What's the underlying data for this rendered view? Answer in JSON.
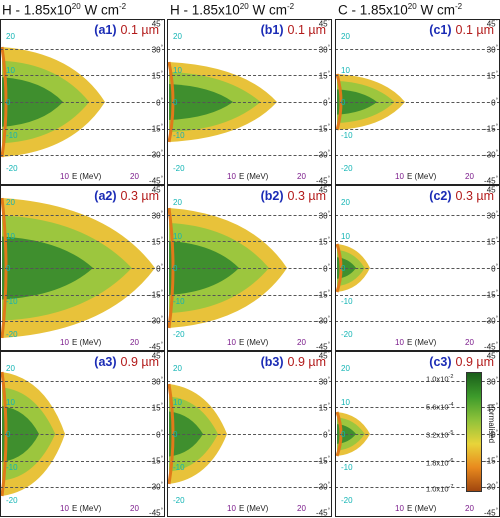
{
  "column_titles": [
    "H - 1.85x10",
    "H - 1.85x10",
    "C - 1.85x10"
  ],
  "title_exp": "20",
  "title_unit": " W cm",
  "title_unit_exp": "-2",
  "panels": [
    {
      "id": "(a1)",
      "thickness": "0.1 µm"
    },
    {
      "id": "(b1)",
      "thickness": "0.1 µm"
    },
    {
      "id": "(c1)",
      "thickness": "0.1 µm"
    },
    {
      "id": "(a2)",
      "thickness": "0.3 µm"
    },
    {
      "id": "(b2)",
      "thickness": "0.3 µm"
    },
    {
      "id": "(c2)",
      "thickness": "0.3 µm"
    },
    {
      "id": "(a3)",
      "thickness": "0.9 µm"
    },
    {
      "id": "(b3)",
      "thickness": "0.9 µm"
    },
    {
      "id": "(c3)",
      "thickness": "0.9 µm"
    }
  ],
  "y_ticks": [
    "20",
    "10",
    "0",
    "-10",
    "-20"
  ],
  "angle_ticks": [
    "45",
    "30",
    "15",
    "0",
    "-15",
    "-30",
    "-45"
  ],
  "x_ticks": [
    "10",
    "20"
  ],
  "x_label": "E (MeV)",
  "colorbar": {
    "ticks": [
      "1.0x10",
      "5.6x10",
      "3.2x10",
      "1.8x10",
      "1.0x10"
    ],
    "exps": [
      "-2",
      "-4",
      "-5",
      "-6",
      "-7"
    ],
    "label": "normalised"
  }
}
